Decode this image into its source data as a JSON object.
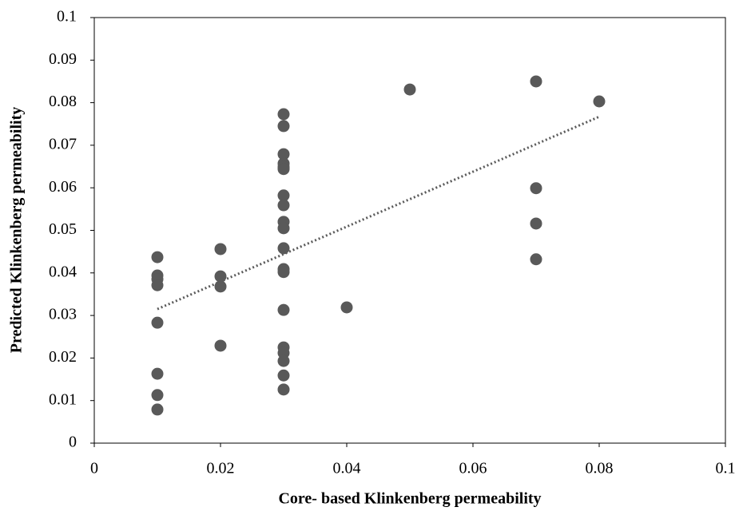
{
  "chart_data": {
    "type": "scatter",
    "xlabel": "Core- based Klinkenberg permeability",
    "ylabel": "Predicted Klinkenberg permeability",
    "series": [
      {
        "color": "#595959",
        "x": [
          0.01,
          0.01,
          0.01,
          0.01,
          0.01,
          0.01,
          0.01,
          0.01,
          0.02,
          0.02,
          0.02,
          0.02,
          0.03,
          0.03,
          0.03,
          0.03,
          0.03,
          0.03,
          0.03,
          0.03,
          0.03,
          0.03,
          0.03,
          0.03,
          0.03,
          0.03,
          0.03,
          0.03,
          0.03,
          0.03,
          0.03,
          0.04,
          0.05,
          0.07,
          0.07,
          0.07,
          0.07,
          0.08
        ],
        "y": [
          0.0437,
          0.0394,
          0.0385,
          0.0371,
          0.0283,
          0.0163,
          0.0113,
          0.0079,
          0.0456,
          0.0392,
          0.0368,
          0.0229,
          0.0773,
          0.0745,
          0.0679,
          0.0657,
          0.0649,
          0.0644,
          0.0582,
          0.0559,
          0.052,
          0.0505,
          0.0458,
          0.0409,
          0.0402,
          0.0313,
          0.0225,
          0.0212,
          0.0193,
          0.0159,
          0.0126,
          0.0319,
          0.0831,
          0.085,
          0.0599,
          0.0516,
          0.0432,
          0.0803
        ]
      }
    ],
    "trendline": {
      "color": "#595959",
      "x": [
        0.01,
        0.08
      ],
      "y": [
        0.0315,
        0.0767
      ]
    },
    "xlim": [
      0,
      0.1
    ],
    "xticks": [
      0,
      0.02,
      0.04,
      0.06,
      0.08,
      0.1
    ],
    "ylim": [
      0,
      0.1
    ],
    "yticks": [
      0,
      0.01,
      0.02,
      0.03,
      0.04,
      0.05,
      0.06,
      0.07,
      0.08,
      0.09,
      0.1
    ]
  }
}
